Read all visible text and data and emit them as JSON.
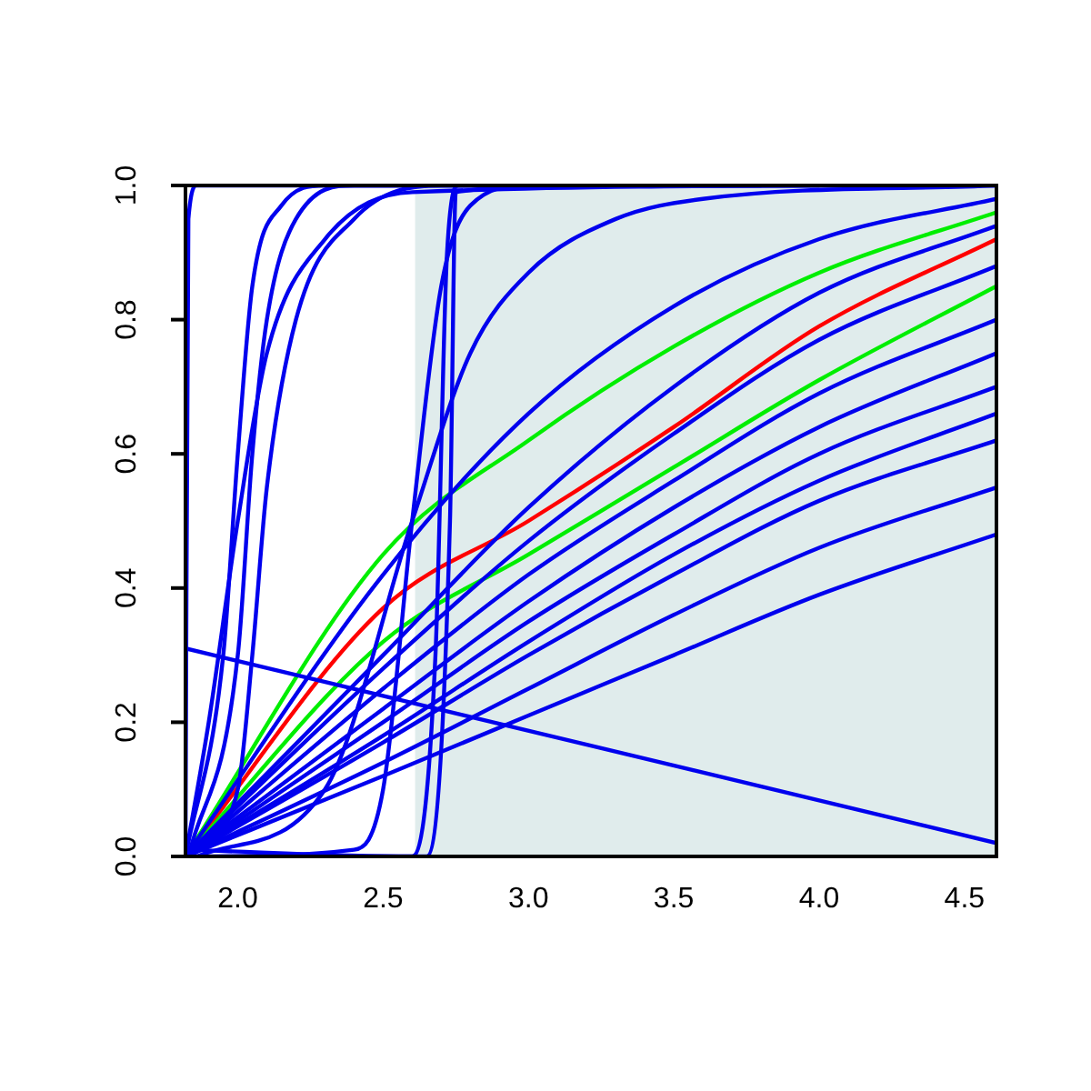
{
  "chart_data": {
    "type": "line",
    "xlim": [
      1.82,
      4.61
    ],
    "ylim": [
      0,
      1
    ],
    "xticks": [
      {
        "value": 2,
        "label": "2.0"
      },
      {
        "value": 2.5,
        "label": "2.5"
      },
      {
        "value": 3,
        "label": "3.0"
      },
      {
        "value": 3.5,
        "label": "3.5"
      },
      {
        "value": 4,
        "label": "4.0"
      },
      {
        "value": 4.5,
        "label": "4.5"
      }
    ],
    "yticks": [
      {
        "value": 0,
        "label": "0.0"
      },
      {
        "value": 0.2,
        "label": "0.2"
      },
      {
        "value": 0.4,
        "label": "0.4"
      },
      {
        "value": 0.6,
        "label": "0.6"
      },
      {
        "value": 0.8,
        "label": "0.8"
      },
      {
        "value": 1,
        "label": "1.0"
      }
    ],
    "grid": false,
    "legend": false,
    "marker": "none",
    "line_style": "solid",
    "bands": [
      {
        "axis": "x",
        "from": 2.61,
        "to": 4.61,
        "color": "#e0ecec"
      }
    ],
    "series": [
      {
        "color": "#0000ee",
        "x": [
          1.82,
          1.83,
          1.86,
          4.61
        ],
        "values": [
          0,
          0.95,
          1,
          1
        ]
      },
      {
        "color": "#0000ee",
        "x": [
          1.82,
          1.95,
          2.0,
          2.05,
          2.15,
          2.3,
          2.6
        ],
        "values": [
          0,
          0.3,
          0.6,
          0.85,
          0.97,
          1,
          1
        ]
      },
      {
        "color": "#0000ee",
        "x": [
          1.83,
          2.0,
          2.05,
          2.1,
          2.2,
          2.4,
          3.0
        ],
        "values": [
          0,
          0.3,
          0.6,
          0.8,
          0.95,
          1,
          1
        ]
      },
      {
        "color": "#0000ee",
        "x": [
          1.82,
          1.9,
          2.0,
          2.1,
          2.3,
          2.6,
          4.3
        ],
        "values": [
          0,
          0.2,
          0.5,
          0.75,
          0.92,
          0.99,
          1
        ]
      },
      {
        "color": "#0000ee",
        "x": [
          1.84,
          2.0,
          2.05,
          2.1,
          2.2,
          2.4,
          2.7,
          3.5
        ],
        "values": [
          0,
          0.1,
          0.3,
          0.55,
          0.8,
          0.95,
          1,
          1
        ]
      },
      {
        "color": "#0000ee",
        "x": [
          1.82,
          2.6,
          2.68,
          2.72,
          2.76,
          4.0
        ],
        "values": [
          0.01,
          0,
          0.3,
          0.9,
          1,
          1
        ]
      },
      {
        "color": "#0000ee",
        "x": [
          2.4,
          2.65,
          2.73,
          2.75,
          3.2
        ],
        "values": [
          0,
          0,
          0.5,
          0.99,
          1
        ]
      },
      {
        "color": "#0000ee",
        "x": [
          1.85,
          2.4,
          2.5,
          2.6,
          2.7,
          2.8,
          3.0,
          3.8
        ],
        "values": [
          0,
          0.01,
          0.1,
          0.5,
          0.85,
          0.97,
          1,
          1
        ]
      },
      {
        "color": "#0000ee",
        "x": [
          1.86,
          2.3,
          2.6,
          2.8,
          3.0,
          3.3,
          3.6,
          4.61
        ],
        "values": [
          0,
          0.1,
          0.5,
          0.75,
          0.87,
          0.95,
          0.98,
          1
        ]
      },
      {
        "color": "#0000ee",
        "x": [
          1.82,
          4.61
        ],
        "values": [
          0.31,
          0.02
        ]
      },
      {
        "color": "#0000ee",
        "x": [
          1.82,
          2.5,
          3.0,
          3.5,
          4.0,
          4.61
        ],
        "values": [
          0,
          0.42,
          0.66,
          0.82,
          0.92,
          0.98
        ]
      },
      {
        "color": "#0000ee",
        "x": [
          1.82,
          2.5,
          3.0,
          3.5,
          4.0,
          4.61
        ],
        "values": [
          0,
          0.3,
          0.52,
          0.7,
          0.84,
          0.94
        ]
      },
      {
        "color": "#0000ee",
        "x": [
          1.82,
          2.5,
          3.0,
          3.5,
          4.0,
          4.61
        ],
        "values": [
          0,
          0.28,
          0.47,
          0.63,
          0.77,
          0.88
        ]
      },
      {
        "color": "#0000ee",
        "x": [
          1.82,
          2.5,
          3.0,
          3.5,
          4.0,
          4.61
        ],
        "values": [
          0,
          0.25,
          0.42,
          0.56,
          0.69,
          0.8
        ]
      },
      {
        "color": "#0000ee",
        "x": [
          1.82,
          2.5,
          3.0,
          3.5,
          4.0,
          4.61
        ],
        "values": [
          0,
          0.22,
          0.38,
          0.52,
          0.64,
          0.75
        ]
      },
      {
        "color": "#0000ee",
        "x": [
          1.82,
          2.5,
          3.0,
          3.5,
          4.0,
          4.61
        ],
        "values": [
          0,
          0.2,
          0.35,
          0.48,
          0.6,
          0.7
        ]
      },
      {
        "color": "#0000ee",
        "x": [
          1.82,
          2.5,
          3.0,
          3.5,
          4.0,
          4.61
        ],
        "values": [
          0,
          0.18,
          0.32,
          0.45,
          0.56,
          0.66
        ]
      },
      {
        "color": "#0000ee",
        "x": [
          1.82,
          2.5,
          3.0,
          3.5,
          4.0,
          4.61
        ],
        "values": [
          0,
          0.17,
          0.3,
          0.42,
          0.53,
          0.62
        ]
      },
      {
        "color": "#0000ee",
        "x": [
          1.82,
          2.5,
          3.0,
          3.5,
          4.0,
          4.61
        ],
        "values": [
          0,
          0.14,
          0.25,
          0.36,
          0.46,
          0.55
        ]
      },
      {
        "color": "#0000ee",
        "x": [
          1.82,
          2.5,
          3.0,
          3.5,
          4.0,
          4.61
        ],
        "values": [
          0,
          0.12,
          0.21,
          0.3,
          0.39,
          0.48
        ]
      },
      {
        "color": "#00ee00",
        "x": [
          1.82,
          2.5,
          3.0,
          3.5,
          4.0,
          4.61
        ],
        "values": [
          0,
          0.45,
          0.62,
          0.76,
          0.87,
          0.96
        ]
      },
      {
        "color": "#00ee00",
        "x": [
          1.82,
          2.5,
          3.0,
          3.5,
          4.0,
          4.61
        ],
        "values": [
          0,
          0.32,
          0.45,
          0.58,
          0.71,
          0.85
        ]
      },
      {
        "color": "#ff0000",
        "x": [
          1.82,
          2.5,
          3.0,
          3.5,
          4.0,
          4.61
        ],
        "values": [
          0,
          0.37,
          0.5,
          0.64,
          0.79,
          0.92
        ]
      }
    ]
  }
}
